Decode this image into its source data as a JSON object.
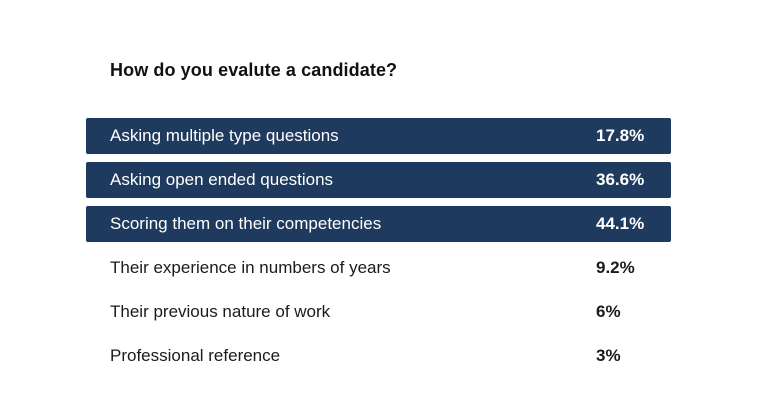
{
  "chart_data": {
    "type": "table",
    "title": "How do you evalute a candidate?",
    "columns": [
      "",
      ""
    ],
    "rows": [
      {
        "label": "Asking multiple type questions",
        "value": "17.8%",
        "highlighted": true
      },
      {
        "label": "Asking open ended questions",
        "value": "36.6%",
        "highlighted": true
      },
      {
        "label": "Scoring them on their competencies",
        "value": "44.1%",
        "highlighted": true
      },
      {
        "label": "Their experience in numbers of years",
        "value": "9.2%",
        "highlighted": false
      },
      {
        "label": "Their previous nature of work",
        "value": "6%",
        "highlighted": false
      },
      {
        "label": "Professional reference",
        "value": "3%",
        "highlighted": false
      }
    ],
    "colors": {
      "highlight_bg": "#1f3a5f",
      "highlight_text": "#ffffff",
      "text": "#1b1b1b"
    }
  }
}
